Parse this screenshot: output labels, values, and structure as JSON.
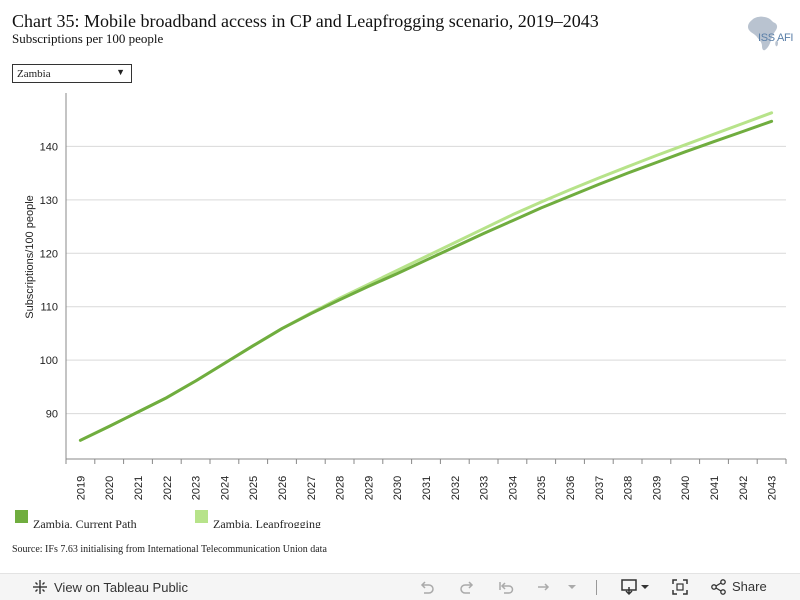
{
  "header": {
    "title": "Chart 35: Mobile broadband access in CP and Leapfrogging scenario, 2019–2043",
    "subtitle": "Subscriptions per 100 people",
    "logo_text": "ISS AFI"
  },
  "filter": {
    "selected": "Zambia"
  },
  "colors": {
    "current_path": "#70ad3f",
    "leapfrogging": "#b7e38a",
    "grid": "#d9d9d9",
    "axis": "#888888"
  },
  "chart_data": {
    "type": "line",
    "title": "Chart 35: Mobile broadband access in CP and Leapfrogging scenario, 2019–2043",
    "subtitle": "Subscriptions per 100 people",
    "ylabel": "Subscriptions/100 people",
    "xlabel": "",
    "ylim": [
      81.5,
      150
    ],
    "yticks": [
      90,
      100,
      110,
      120,
      130,
      140
    ],
    "grid": true,
    "legend_position": "bottom-left",
    "x": [
      "2019",
      "2020",
      "2021",
      "2022",
      "2023",
      "2024",
      "2025",
      "2026",
      "2027",
      "2028",
      "2029",
      "2030",
      "2031",
      "2032",
      "2033",
      "2034",
      "2035",
      "2036",
      "2037",
      "2038",
      "2039",
      "2040",
      "2041",
      "2042",
      "2043"
    ],
    "series": [
      {
        "name": "Zambia, Current Path",
        "color": "#70ad3f",
        "values": [
          85.0,
          87.6,
          90.3,
          93.0,
          96.1,
          99.4,
          102.7,
          105.9,
          108.7,
          111.3,
          113.8,
          116.2,
          118.7,
          121.2,
          123.7,
          126.1,
          128.5,
          130.7,
          132.9,
          135.0,
          137.0,
          139.0,
          140.9,
          142.8,
          144.7
        ]
      },
      {
        "name": "Zambia, Leapfrogging",
        "color": "#b7e38a",
        "values": [
          85.0,
          87.6,
          90.3,
          93.0,
          96.1,
          99.4,
          102.7,
          105.9,
          108.8,
          111.6,
          114.2,
          116.8,
          119.4,
          122.0,
          124.6,
          127.2,
          129.6,
          131.9,
          134.1,
          136.2,
          138.3,
          140.3,
          142.3,
          144.3,
          146.3
        ]
      }
    ]
  },
  "source": "Source: IFs 7.63 initialising from International Telecommunication Union data",
  "toolbar": {
    "view_label": "View on Tableau Public",
    "share_label": "Share"
  }
}
